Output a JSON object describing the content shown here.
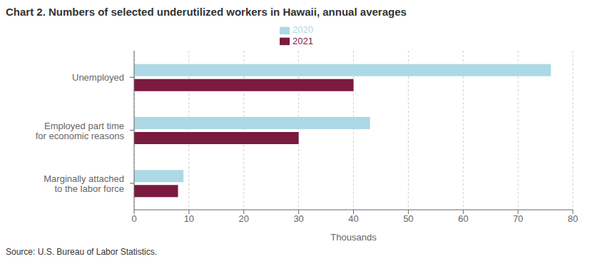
{
  "chart_data": {
    "type": "bar",
    "title": "Chart 2. Numbers of selected underutilized workers in Hawaii, annual averages",
    "orientation": "horizontal",
    "categories": [
      "Marginally attached\nto the labor force",
      "Employed part time\nfor economic reasons",
      "Unemployed"
    ],
    "series": [
      {
        "name": "2020",
        "color": "#add8e6",
        "values": [
          9,
          43,
          76
        ]
      },
      {
        "name": "2021",
        "color": "#7b1a3f",
        "values": [
          8,
          30,
          40
        ]
      }
    ],
    "xlabel": "Thousands",
    "xlim": [
      0,
      80
    ],
    "xticks": [
      0,
      10,
      20,
      30,
      40,
      50,
      60,
      70,
      80
    ],
    "grid": true,
    "legend": "top",
    "source": "Source: U.S. Bureau of Labor Statistics."
  }
}
